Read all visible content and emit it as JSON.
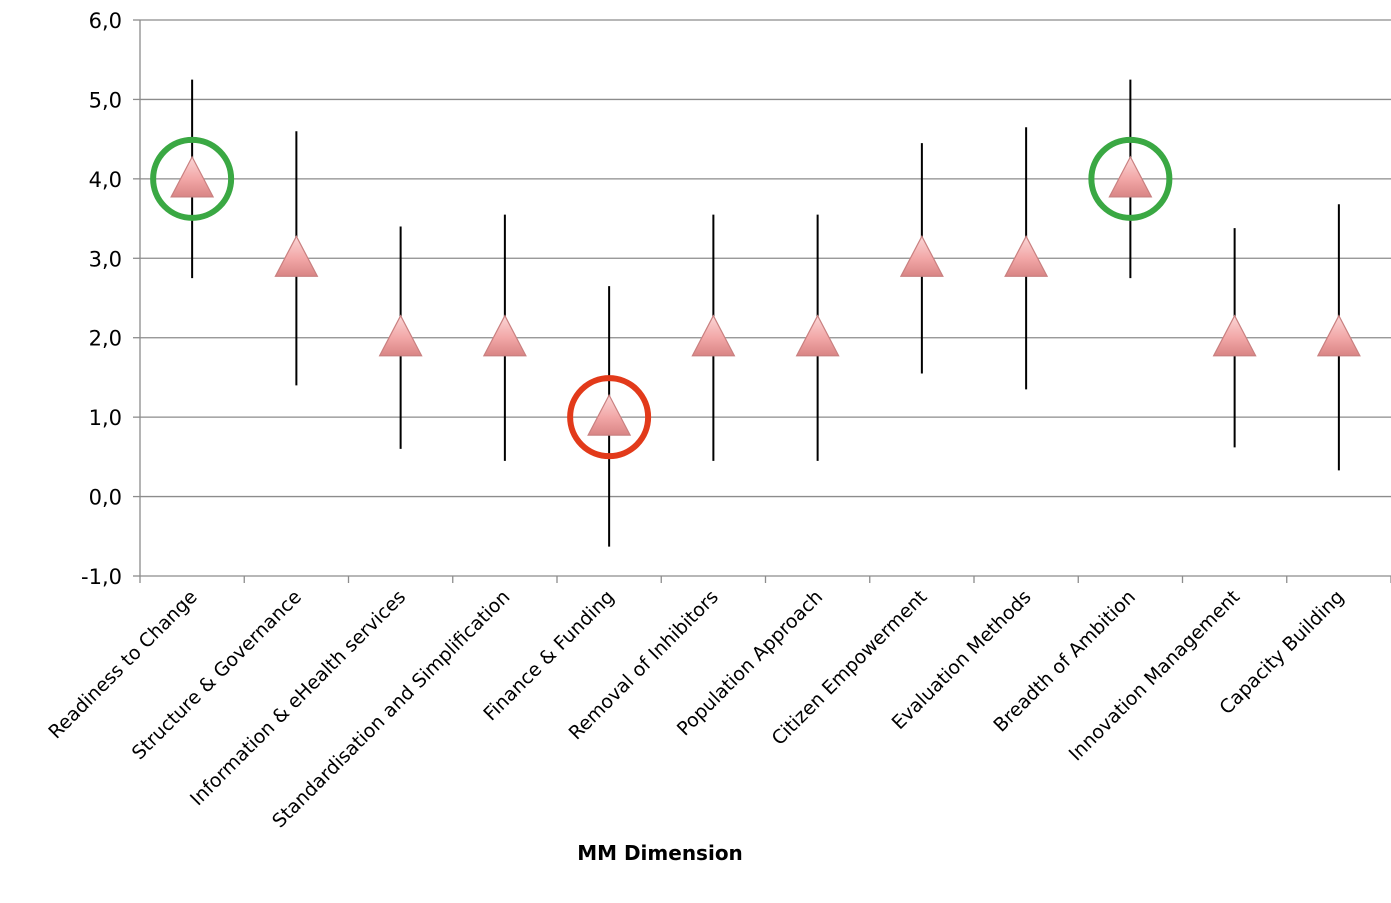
{
  "chart_data": {
    "type": "scatter",
    "title": "",
    "xlabel": "MM Dimension",
    "ylabel": "",
    "ylim": [
      -1,
      6
    ],
    "y_ticks": [
      "-1,0",
      "0,0",
      "1,0",
      "2,0",
      "3,0",
      "4,0",
      "5,0",
      "6,0"
    ],
    "grid": true,
    "categories": [
      "Readiness to Change",
      "Structure & Governance",
      "Information & eHealth services",
      "Standardisation and Simplification",
      "Finance & Funding",
      "Removal of Inhibitors",
      "Population Approach",
      "Citizen Empowerment",
      "Evaluation Methods",
      "Breadth of Ambition",
      "Innovation Management",
      "Capacity Building"
    ],
    "values": [
      4.0,
      3.0,
      2.0,
      2.0,
      1.0,
      2.0,
      2.0,
      3.0,
      3.0,
      4.0,
      2.0,
      2.0
    ],
    "err_low": [
      2.75,
      1.4,
      0.6,
      0.45,
      -0.63,
      0.45,
      0.45,
      1.55,
      1.35,
      2.75,
      0.62,
      0.33
    ],
    "err_high": [
      5.25,
      4.6,
      3.4,
      3.55,
      2.65,
      3.55,
      3.55,
      4.45,
      4.65,
      5.25,
      3.38,
      3.68
    ],
    "marker": "triangle",
    "marker_color": "#f2a7a7",
    "highlights": [
      {
        "category": "Readiness to Change",
        "color": "#3aa843"
      },
      {
        "category": "Finance & Funding",
        "color": "#e23a1a"
      },
      {
        "category": "Breadth of Ambition",
        "color": "#3aa843"
      }
    ]
  }
}
